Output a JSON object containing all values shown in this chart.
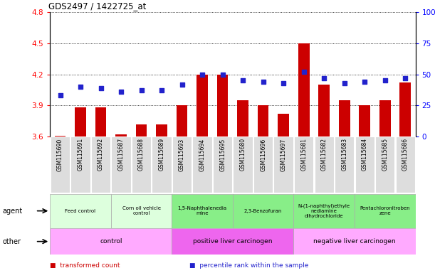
{
  "title": "GDS2497 / 1422725_at",
  "samples": [
    "GSM115690",
    "GSM115691",
    "GSM115692",
    "GSM115687",
    "GSM115688",
    "GSM115689",
    "GSM115693",
    "GSM115694",
    "GSM115695",
    "GSM115680",
    "GSM115696",
    "GSM115697",
    "GSM115681",
    "GSM115682",
    "GSM115683",
    "GSM115684",
    "GSM115685",
    "GSM115686"
  ],
  "transformed_count": [
    3.61,
    3.88,
    3.88,
    3.62,
    3.72,
    3.72,
    3.9,
    4.2,
    4.2,
    3.95,
    3.9,
    3.82,
    4.5,
    4.1,
    3.95,
    3.9,
    3.95,
    4.12
  ],
  "percentile_rank": [
    33,
    40,
    39,
    36,
    37,
    37,
    42,
    50,
    50,
    45,
    44,
    43,
    52,
    47,
    43,
    44,
    45,
    47
  ],
  "ylim_left": [
    3.6,
    4.8
  ],
  "ylim_right": [
    0,
    100
  ],
  "yticks_left": [
    3.6,
    3.9,
    4.2,
    4.5,
    4.8
  ],
  "yticks_right": [
    0,
    25,
    50,
    75,
    100
  ],
  "bar_color": "#cc0000",
  "dot_color": "#2222cc",
  "agent_groups": [
    {
      "label": "Feed control",
      "start": 0,
      "end": 3,
      "color": "#ddffdd"
    },
    {
      "label": "Corn oil vehicle\ncontrol",
      "start": 3,
      "end": 6,
      "color": "#ddffdd"
    },
    {
      "label": "1,5-Naphthalenedia\nmine",
      "start": 6,
      "end": 9,
      "color": "#88ee88"
    },
    {
      "label": "2,3-Benzofuran",
      "start": 9,
      "end": 12,
      "color": "#88ee88"
    },
    {
      "label": "N-(1-naphthyl)ethyle\nnediamine\ndihydrochloride",
      "start": 12,
      "end": 15,
      "color": "#88ee88"
    },
    {
      "label": "Pentachloronitroben\nzene",
      "start": 15,
      "end": 18,
      "color": "#88ee88"
    }
  ],
  "other_groups": [
    {
      "label": "control",
      "start": 0,
      "end": 6,
      "color": "#ffaaff"
    },
    {
      "label": "positive liver carcinogen",
      "start": 6,
      "end": 12,
      "color": "#ee66ee"
    },
    {
      "label": "negative liver carcinogen",
      "start": 12,
      "end": 18,
      "color": "#ffaaff"
    }
  ],
  "legend_items": [
    {
      "label": "transformed count",
      "color": "#cc0000"
    },
    {
      "label": "percentile rank within the sample",
      "color": "#2222cc"
    }
  ],
  "label_bg_color": "#dddddd"
}
